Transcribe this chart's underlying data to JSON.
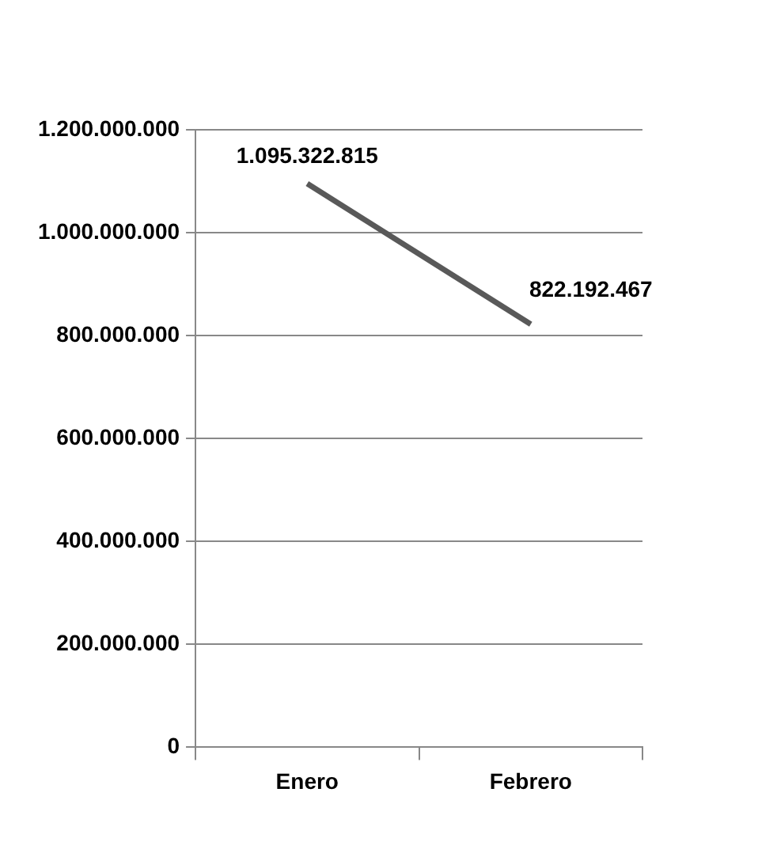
{
  "chart_data": {
    "type": "line",
    "categories": [
      "Enero",
      "Febrero"
    ],
    "series": [
      {
        "color": "#595959",
        "values": [
          1095322815,
          822192467
        ],
        "value_labels": [
          "1.095.322.815",
          "822.192.467"
        ]
      }
    ],
    "ylim": [
      0,
      1200000000
    ],
    "yticks": [
      {
        "value": 0,
        "label": "0"
      },
      {
        "value": 200000000,
        "label": "200.000.000"
      },
      {
        "value": 400000000,
        "label": "400.000.000"
      },
      {
        "value": 600000000,
        "label": "600.000.000"
      },
      {
        "value": 800000000,
        "label": "800.000.000"
      },
      {
        "value": 1000000000,
        "label": "1.000.000.000"
      },
      {
        "value": 1200000000,
        "label": "1.200.000.000"
      }
    ],
    "grid": "y",
    "marker": "none",
    "line_style": "solid"
  }
}
